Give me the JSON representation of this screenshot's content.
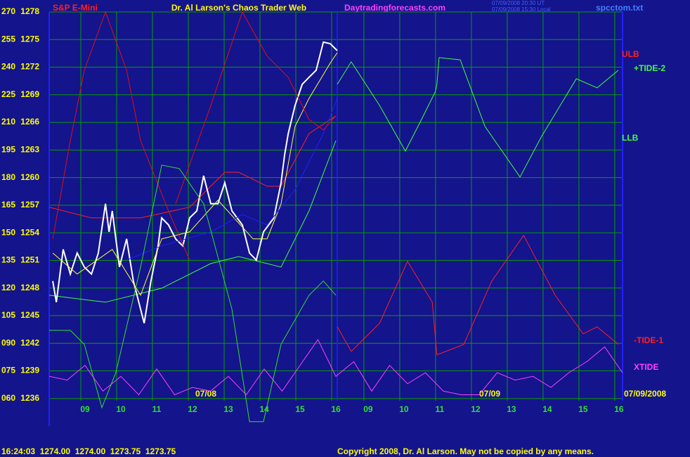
{
  "chart_data": {
    "type": "line",
    "title": "Dr. Al Larson's Chaos Trader Web",
    "symbol": "S&P E-Mini",
    "website": "Daytradingforecasts.com",
    "timestamps": [
      "07/09/2008 20:30 UT",
      "07/09/2008 15:30 Local"
    ],
    "file": "spcctom.txt",
    "date_labels": [
      "07/08",
      "07/09",
      "07/09/2008"
    ],
    "quote": "16:24:03  1274.00  1274.00  1273.75  1273.75",
    "copyright": "Copyright 2008, Dr. Al Larson. May not be copied by any means.",
    "grid": true,
    "xlim": [
      8,
      24
    ],
    "xticks": [
      {
        "value": 9,
        "label": "09"
      },
      10,
      11,
      12,
      13,
      14,
      15,
      16,
      {
        "value": 16.9,
        "label": "09"
      },
      {
        "value": 17.9,
        "label": "10"
      },
      {
        "value": 18.9,
        "label": "11"
      },
      {
        "value": 19.9,
        "label": "12"
      },
      {
        "value": 20.9,
        "label": "13"
      },
      {
        "value": 21.9,
        "label": "14"
      },
      {
        "value": 22.9,
        "label": "15"
      },
      {
        "value": 23.9,
        "label": "16"
      }
    ],
    "ylim": [
      45,
      270
    ],
    "yticks": [
      {
        "value": 60,
        "label": "060"
      },
      {
        "value": 75,
        "label": "075"
      },
      {
        "value": 90,
        "label": "090"
      },
      105,
      120,
      135,
      150,
      165,
      180,
      195,
      210,
      225,
      240,
      255,
      270
    ],
    "y2lim": [
      1233,
      1278
    ],
    "y2ticks": [
      1236,
      1239,
      1242,
      1245,
      1248,
      1251,
      1254,
      1257,
      1260,
      1263,
      1266,
      1269,
      1272,
      1275,
      1278
    ],
    "series": [
      {
        "name": "ULB",
        "color": "#ff2020",
        "x": [
          8,
          9.18,
          10.55,
          11.92,
          12.9,
          13.29,
          14.08,
          14.47,
          15.25,
          16
        ],
        "values": [
          163.9,
          158.1,
          158.1,
          163.9,
          182.9,
          182.9,
          175.3,
          175.3,
          203.9,
          213.5
        ]
      },
      {
        "name": "+TIDE-2",
        "color": "#40ff40",
        "x": [
          16.04,
          16.43,
          17.22,
          17.94,
          18.39,
          18.78,
          18.82,
          18.88,
          19.47,
          20.16,
          21.14,
          21.73,
          22.71,
          23.29,
          23.88
        ],
        "values": [
          230.7,
          242.9,
          219.2,
          194.4,
          211.6,
          226.9,
          230.7,
          245.2,
          244,
          207.8,
          180.3,
          202,
          233.7,
          228.8,
          238.3
        ]
      },
      {
        "name": "LLB",
        "color": "#40ff40",
        "x": [
          8,
          9.57,
          11.14,
          12.51,
          13.29,
          14.47,
          15.25,
          16
        ],
        "values": [
          116.1,
          112.3,
          119.9,
          133.3,
          137.1,
          131.4,
          161.9,
          200.1
        ]
      },
      {
        "name": "-TIDE-1",
        "color": "#ff2020",
        "x": [
          16.04,
          16.43,
          17.22,
          18,
          18.69,
          18.82,
          19.57,
          20.35,
          21.24,
          22.12,
          22.9,
          23.29,
          23.88
        ],
        "values": [
          98.9,
          85.6,
          100.9,
          134.5,
          112.3,
          83.7,
          89.4,
          123.8,
          148.6,
          116.1,
          95.1,
          98.9,
          89.4
        ]
      },
      {
        "name": "XTIDE",
        "color": "#ff40ff",
        "x": [
          8,
          8.5,
          9,
          9.5,
          10,
          10.5,
          11,
          11.5,
          12,
          12.5,
          13,
          13.5,
          14,
          14.5,
          15,
          15.5,
          16,
          16.5,
          17,
          17.5,
          18,
          18.5,
          19,
          19.5,
          20,
          20.5,
          21,
          21.5,
          22,
          22.5,
          23,
          23.5,
          24
        ],
        "values": [
          72,
          70,
          78,
          64,
          72,
          62,
          76,
          62,
          66,
          64,
          72,
          62,
          76,
          64,
          78,
          92,
          72,
          80,
          64,
          78,
          68,
          74,
          64,
          62,
          62,
          74,
          70,
          72,
          66,
          74,
          80,
          88,
          74
        ]
      },
      {
        "color": "#ffffff",
        "x": [
          8.1,
          8.2,
          8.39,
          8.59,
          8.78,
          8.98,
          9.18,
          9.37,
          9.57,
          9.67,
          9.76,
          9.96,
          10.16,
          10.35,
          10.55,
          10.65,
          10.84,
          11.04,
          11.14,
          11.33,
          11.53,
          11.73,
          11.92,
          12.12,
          12.31,
          12.51,
          12.71,
          12.9,
          13.1,
          13.39,
          13.59,
          13.78,
          13.98,
          14.27,
          14.47,
          14.57,
          14.67,
          14.86,
          15.06,
          15.25,
          15.45,
          15.65,
          15.84,
          16.04
        ],
        "values": [
          123.8,
          112.3,
          141,
          127.6,
          139,
          131.4,
          127.6,
          139,
          165.8,
          150.5,
          161.9,
          131.4,
          146.7,
          123.8,
          108.5,
          100.9,
          123.8,
          142.9,
          158.1,
          154.3,
          146.7,
          142.9,
          158.1,
          161.9,
          181,
          165.8,
          165.8,
          177.2,
          161.9,
          154.3,
          139,
          135.2,
          150.5,
          158.1,
          177.2,
          192.5,
          203.9,
          219.2,
          230.7,
          234.5,
          238.3,
          253.6,
          252.8,
          249
        ]
      },
      {
        "color": "#ffff40",
        "x": [
          8.1,
          8.78,
          9.76,
          10.55,
          11.14,
          11.92,
          12.71,
          13.69,
          14.08,
          14.47,
          14.86,
          15.25,
          15.84,
          16.04
        ],
        "values": [
          139,
          127.6,
          141,
          116.1,
          146.7,
          150.5,
          167.7,
          146.7,
          146.7,
          165.8,
          207.8,
          223,
          242.1,
          247.9
        ]
      },
      {
        "color": "#2020ff",
        "x": [
          10.16,
          11.14,
          12.51,
          13.39,
          14.08,
          14.86,
          15.65,
          16.04
        ],
        "values": [
          135.2,
          142.9,
          150.5,
          160,
          154.3,
          173.4,
          203.9,
          223
        ]
      },
      {
        "color": "#e01010",
        "x": [
          8.1,
          8.59,
          8.98,
          9.57,
          10.16,
          10.55,
          11.33,
          11.92
        ],
        "values": [
          146.7,
          200.1,
          238.3,
          270,
          238.3,
          200.1,
          161.9,
          135.2
        ]
      },
      {
        "color": "#e01010",
        "x": [
          11.53,
          12.51,
          13.39,
          14.08,
          14.67,
          15.25,
          15.65,
          16
        ],
        "values": [
          165.8,
          219.2,
          270,
          246,
          234.5,
          211.6,
          205.9,
          213.5
        ]
      },
      {
        "color": "#30e030",
        "x": [
          8,
          8.59,
          8.98,
          9.47,
          9.86,
          10.55,
          11.14,
          11.63,
          12.31,
          13.1,
          13.59,
          13.98,
          14.47,
          15.25,
          15.65,
          16
        ],
        "values": [
          97,
          97,
          89.4,
          55,
          74.1,
          131.4,
          186.8,
          184.9,
          165.8,
          108.5,
          47.4,
          47.4,
          89.4,
          116.1,
          123.8,
          116.1
        ]
      }
    ]
  }
}
